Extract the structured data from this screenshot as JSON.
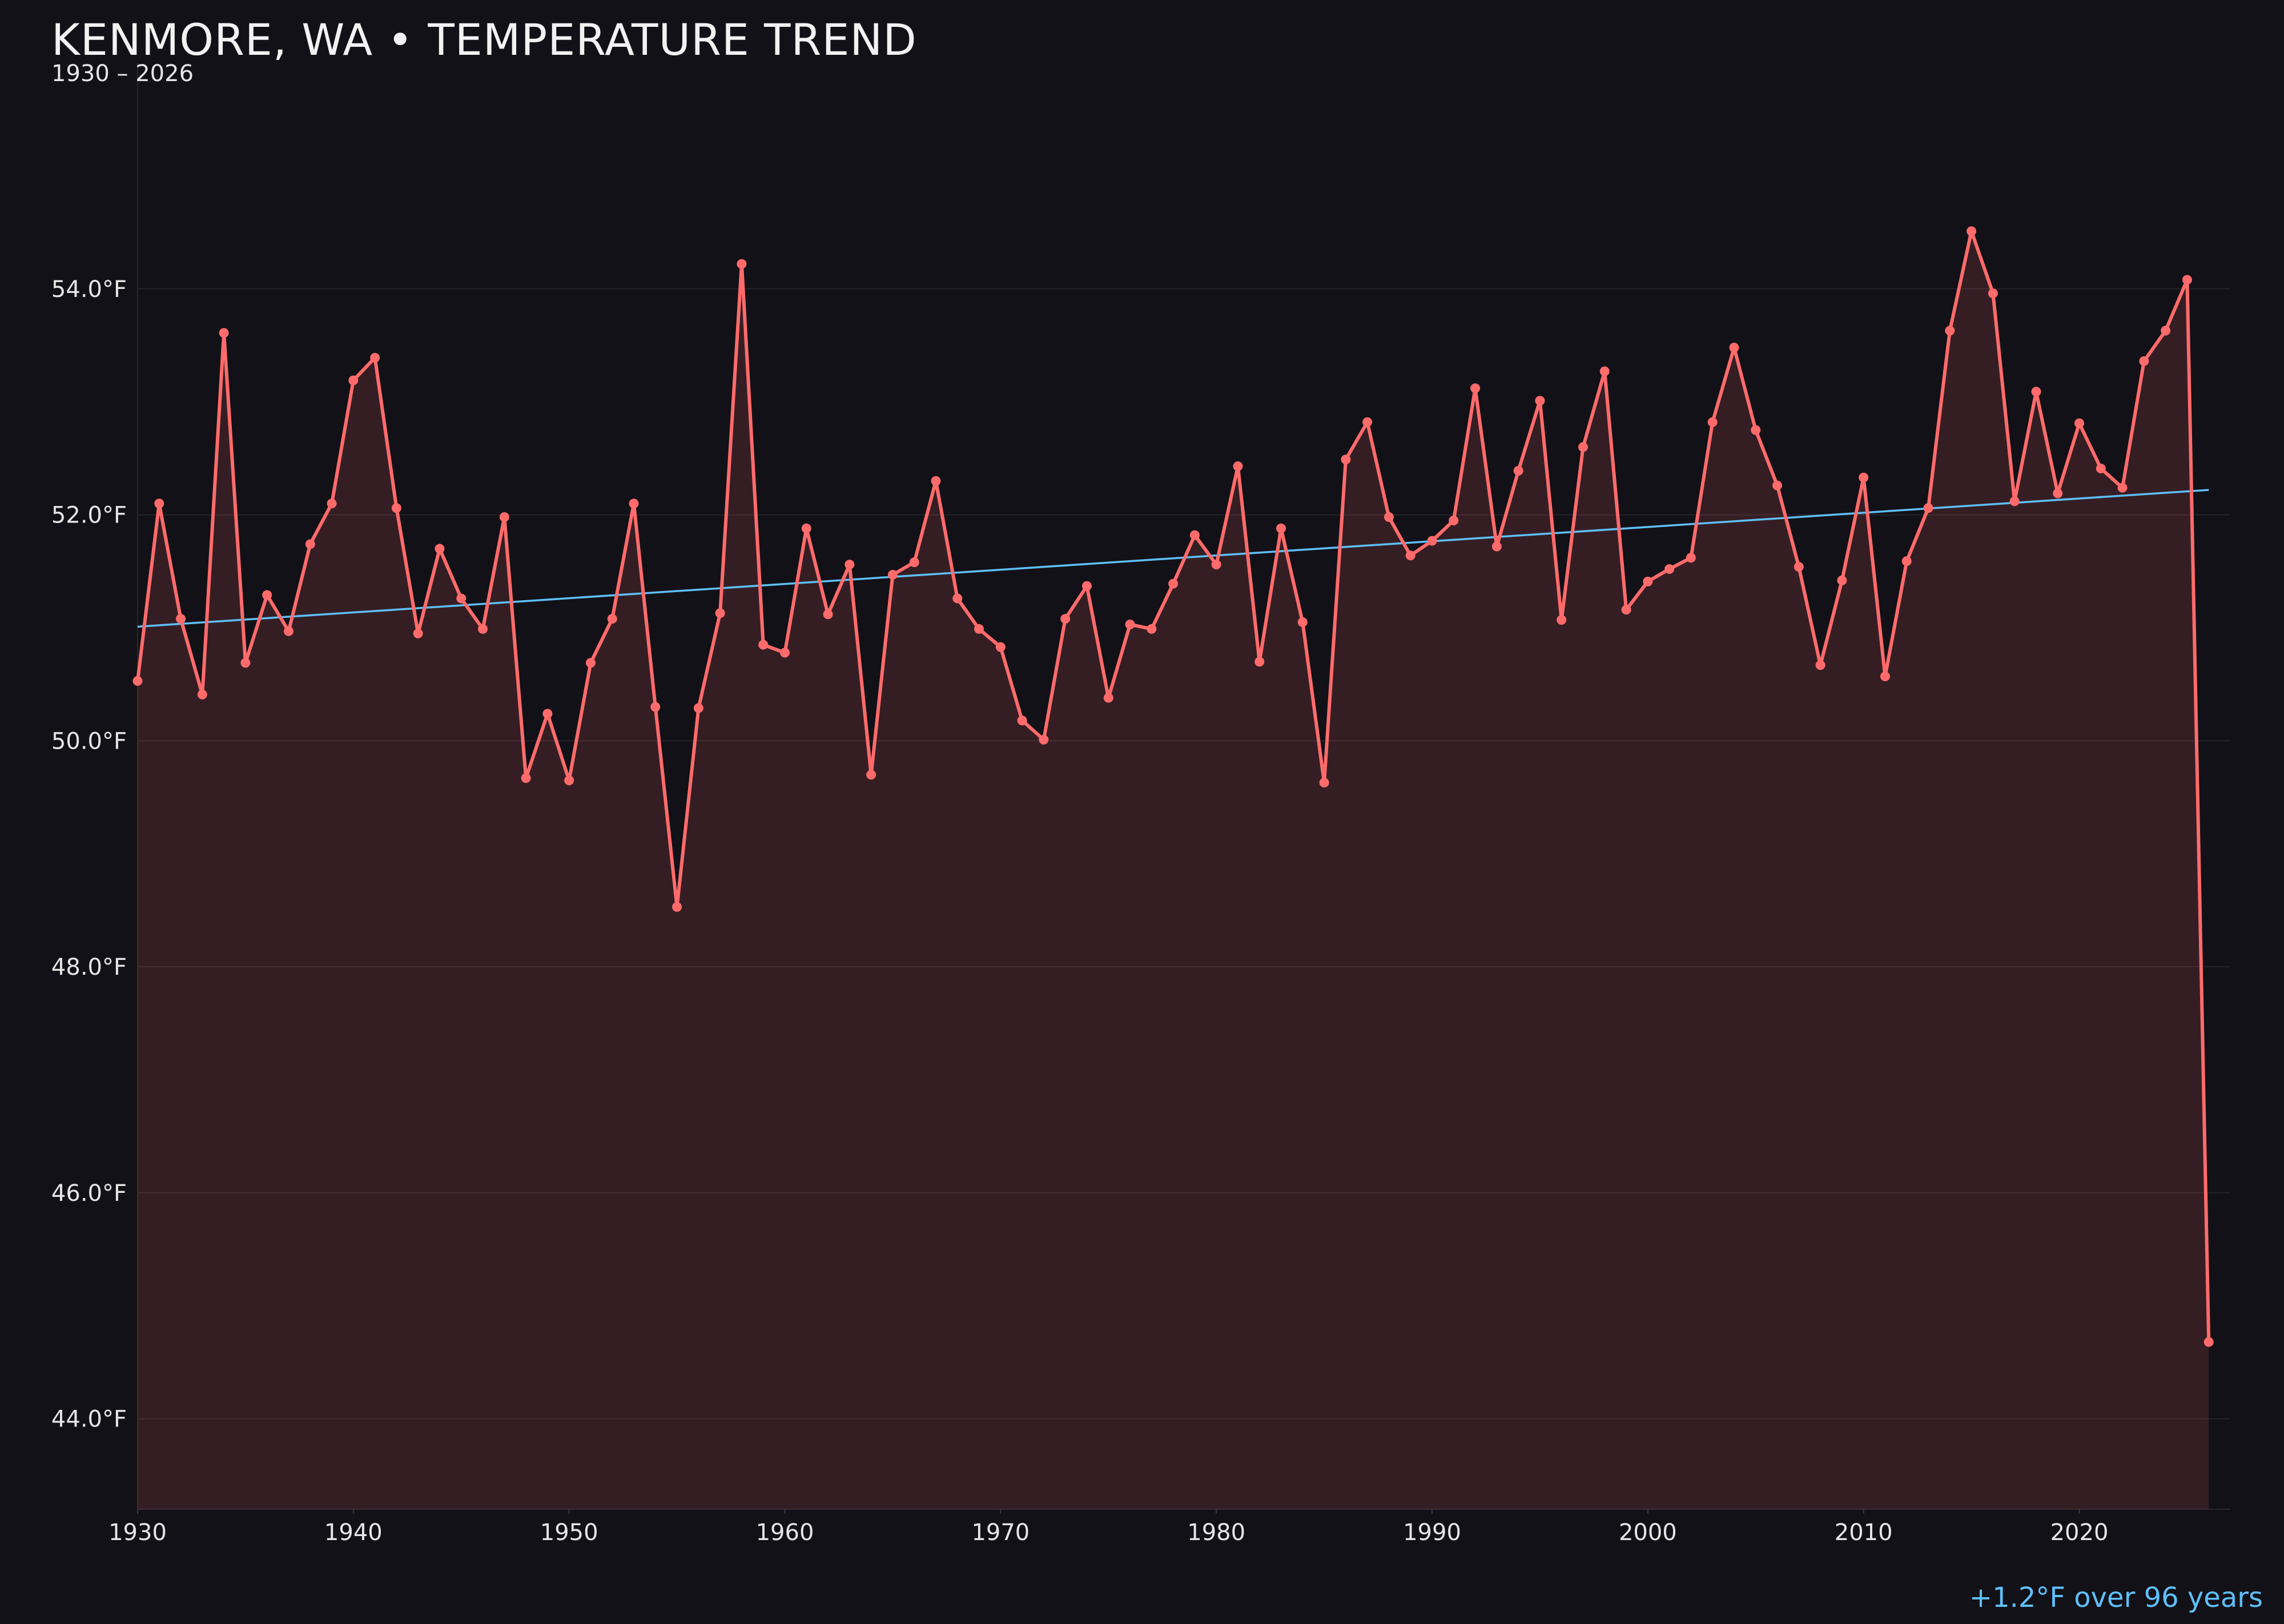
{
  "chart_data": {
    "type": "line",
    "title": "KENMORE, WA • TEMPERATURE TREND",
    "subtitle": "1930 – 2026",
    "xlabel": "",
    "ylabel": "",
    "xlim": [
      1930,
      2027
    ],
    "ylim": [
      43.2,
      56.0
    ],
    "x_ticks": [
      1930,
      1940,
      1950,
      1960,
      1970,
      1980,
      1990,
      2000,
      2010,
      2020
    ],
    "y_ticks": [
      44.0,
      46.0,
      48.0,
      50.0,
      52.0,
      54.0
    ],
    "y_tick_labels": [
      "44.0°F",
      "46.0°F",
      "48.0°F",
      "50.0°F",
      "52.0°F",
      "54.0°F"
    ],
    "grid": "horizontal",
    "series": [
      {
        "color": "#ff6b6b",
        "fill": true,
        "markers": true,
        "x": [
          1930,
          1931,
          1932,
          1933,
          1934,
          1935,
          1936,
          1937,
          1938,
          1939,
          1940,
          1941,
          1942,
          1943,
          1944,
          1945,
          1946,
          1947,
          1948,
          1949,
          1950,
          1951,
          1952,
          1953,
          1954,
          1955,
          1956,
          1957,
          1958,
          1959,
          1960,
          1961,
          1962,
          1963,
          1964,
          1965,
          1966,
          1967,
          1968,
          1969,
          1970,
          1971,
          1972,
          1973,
          1974,
          1975,
          1976,
          1977,
          1978,
          1979,
          1980,
          1981,
          1982,
          1983,
          1984,
          1985,
          1986,
          1987,
          1988,
          1989,
          1990,
          1991,
          1992,
          1993,
          1994,
          1995,
          1996,
          1997,
          1998,
          1999,
          2000,
          2001,
          2002,
          2003,
          2004,
          2005,
          2006,
          2007,
          2008,
          2009,
          2010,
          2011,
          2012,
          2013,
          2014,
          2015,
          2016,
          2017,
          2018,
          2019,
          2020,
          2021,
          2022,
          2023,
          2024,
          2025,
          2026
        ],
        "values": [
          50.53,
          52.1,
          51.08,
          50.41,
          53.61,
          50.69,
          51.29,
          50.97,
          51.74,
          52.1,
          53.19,
          53.39,
          52.06,
          50.95,
          51.7,
          51.26,
          50.99,
          51.98,
          49.67,
          50.24,
          49.65,
          50.69,
          51.08,
          52.1,
          50.3,
          48.53,
          50.29,
          51.13,
          54.22,
          50.85,
          50.78,
          51.88,
          51.12,
          51.56,
          49.7,
          51.47,
          51.58,
          52.3,
          51.26,
          50.99,
          50.83,
          50.18,
          50.01,
          51.08,
          51.37,
          50.38,
          51.03,
          50.99,
          51.39,
          51.82,
          51.56,
          52.43,
          50.7,
          51.88,
          51.05,
          49.63,
          52.49,
          52.82,
          51.98,
          51.64,
          51.77,
          51.95,
          53.12,
          51.72,
          52.39,
          53.01,
          51.07,
          52.6,
          53.27,
          51.16,
          51.41,
          51.52,
          51.62,
          52.82,
          53.48,
          52.75,
          52.26,
          51.54,
          50.67,
          51.42,
          52.33,
          50.57,
          51.59,
          52.06,
          53.63,
          54.51,
          53.96,
          52.12,
          53.09,
          52.19,
          52.81,
          52.41,
          52.24,
          53.36,
          53.63,
          54.08,
          44.68
        ]
      },
      {
        "color": "#5fbff9",
        "type": "trend",
        "x": [
          1930,
          2026
        ],
        "values": [
          51.01,
          52.22
        ]
      }
    ],
    "annotation": "+1.2°F over 96 years",
    "annotation_color": "#5fbff9"
  }
}
